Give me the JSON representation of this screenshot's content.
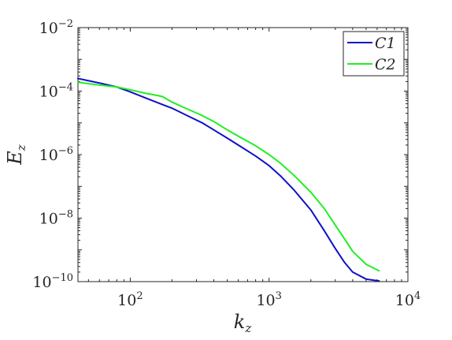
{
  "chart_data": {
    "type": "line",
    "xlabel": {
      "base": "k",
      "sub": "z"
    },
    "ylabel": {
      "base": "E",
      "sub": "z"
    },
    "x_scale": "log",
    "y_scale": "log",
    "xlim": [
      42,
      10000
    ],
    "ylim": [
      1e-10,
      0.01
    ],
    "grid": false,
    "legend_position": "top-right",
    "x_ticks": [
      {
        "base": "10",
        "exp": "2",
        "value": 100
      },
      {
        "base": "10",
        "exp": "3",
        "value": 1000
      },
      {
        "base": "10",
        "exp": "4",
        "value": 10000
      }
    ],
    "y_ticks": [
      {
        "base": "10",
        "exp": "−2",
        "value": 0.01
      },
      {
        "base": "10",
        "exp": "−4",
        "value": 0.0001
      },
      {
        "base": "10",
        "exp": "−6",
        "value": 1e-06
      },
      {
        "base": "10",
        "exp": "−8",
        "value": 1e-08
      },
      {
        "base": "10",
        "exp": "−10",
        "value": 1e-10
      }
    ],
    "series": [
      {
        "name": "C1",
        "color": "#1010c8",
        "x": [
          42,
          60,
          80,
          100,
          130,
          170,
          200,
          250,
          330,
          400,
          500,
          600,
          800,
          1000,
          1200,
          1500,
          2000,
          2500,
          3000,
          3500,
          4000,
          5000,
          6200
        ],
        "y": [
          0.00025,
          0.00018,
          0.000135,
          9.5e-05,
          6e-05,
          3.8e-05,
          2.9e-05,
          1.8e-05,
          1e-05,
          6e-06,
          3.3e-06,
          2e-06,
          9e-07,
          4.5e-07,
          2.2e-07,
          8e-08,
          1.8e-08,
          4e-09,
          1.1e-09,
          4e-10,
          2e-10,
          1.2e-10,
          1.05e-10
        ]
      },
      {
        "name": "C2",
        "color": "#22ee22",
        "x": [
          42,
          60,
          80,
          100,
          130,
          170,
          200,
          250,
          330,
          400,
          500,
          600,
          800,
          1000,
          1200,
          1500,
          2000,
          2500,
          3000,
          3500,
          4000,
          5000,
          6200
        ],
        "y": [
          0.00019,
          0.000155,
          0.000135,
          0.00011,
          8.5e-05,
          6.8e-05,
          4.5e-05,
          2.9e-05,
          1.7e-05,
          1.1e-05,
          6e-06,
          3.8e-06,
          1.9e-06,
          1e-06,
          5.5e-07,
          2.3e-07,
          6.5e-08,
          2e-08,
          6e-09,
          2.2e-09,
          9e-10,
          3.5e-10,
          2.2e-10
        ]
      }
    ]
  }
}
